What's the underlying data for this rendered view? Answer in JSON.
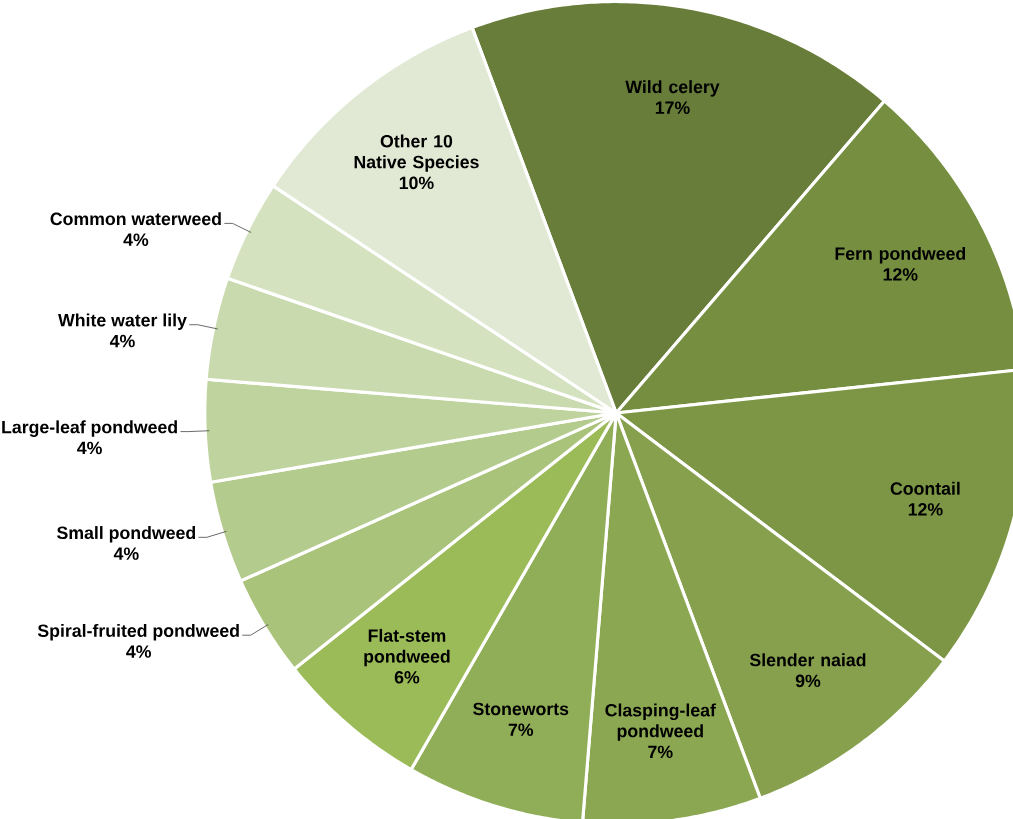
{
  "chart_data": {
    "type": "pie",
    "categories": [
      "Wild celery",
      "Fern pondweed",
      "Coontail",
      "Slender naiad",
      "Clasping-leaf pondweed",
      "Stoneworts",
      "Flat-stem pondweed",
      "Spiral-fruited pondweed",
      "Small pondweed",
      "Large-leaf pondweed",
      "White water lily",
      "Common waterweed",
      "Other 10 Native Species"
    ],
    "values": [
      17,
      12,
      12,
      9,
      7,
      7,
      6,
      4,
      4,
      4,
      4,
      4,
      10
    ],
    "value_labels": [
      "17%",
      "12%",
      "12%",
      "9%",
      "7%",
      "7%",
      "6%",
      "4%",
      "4%",
      "4%",
      "4%",
      "4%",
      "10%"
    ],
    "colors": [
      "#677d39",
      "#758e3f",
      "#7c9645",
      "#86a04d",
      "#8ba752",
      "#90ad57",
      "#9bbb59",
      "#a9c37b",
      "#b4cb8e",
      "#bed39d",
      "#c9daae",
      "#d5e2c0",
      "#e1e9d4"
    ]
  }
}
